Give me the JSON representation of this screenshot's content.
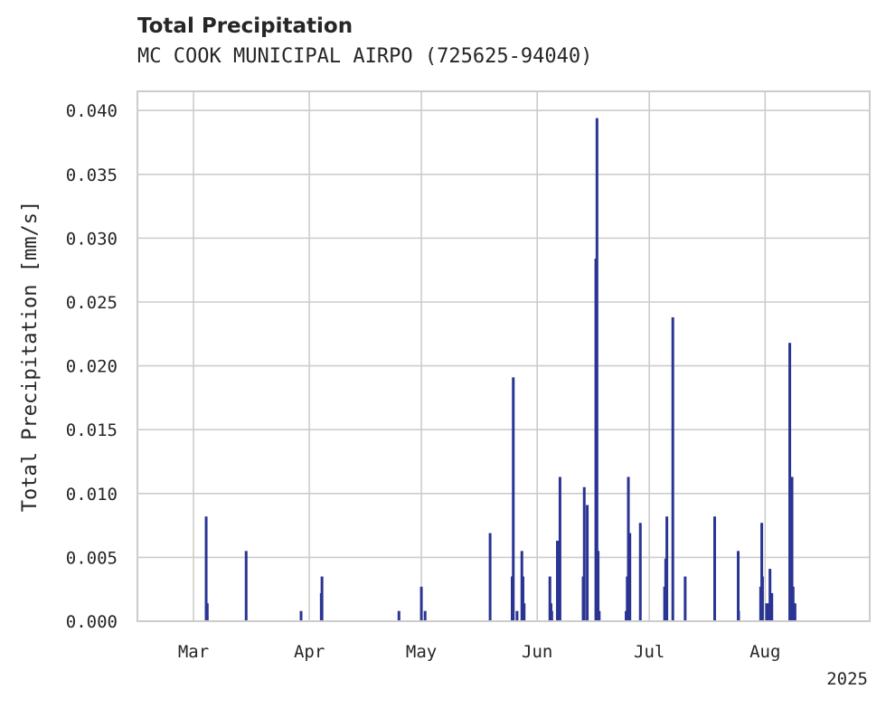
{
  "chart_data": {
    "type": "bar",
    "title": "Total Precipitation",
    "subtitle": "MC COOK MUNICIPAL AIRPO (725625-94040)",
    "ylabel": "Total Precipitation [mm/s]",
    "xlabel": "",
    "year_label": "2025",
    "ylim": [
      0,
      0.0415
    ],
    "xlim_day_of_year": [
      45,
      241
    ],
    "grid": true,
    "bar_color": "#2a3593",
    "yticks": [
      {
        "value": 0.0,
        "label": "0.000"
      },
      {
        "value": 0.005,
        "label": "0.005"
      },
      {
        "value": 0.01,
        "label": "0.010"
      },
      {
        "value": 0.015,
        "label": "0.015"
      },
      {
        "value": 0.02,
        "label": "0.020"
      },
      {
        "value": 0.025,
        "label": "0.025"
      },
      {
        "value": 0.03,
        "label": "0.030"
      },
      {
        "value": 0.035,
        "label": "0.035"
      },
      {
        "value": 0.04,
        "label": "0.040"
      }
    ],
    "xticks": [
      {
        "day_of_year": 60,
        "label": "Mar"
      },
      {
        "day_of_year": 91,
        "label": "Apr"
      },
      {
        "day_of_year": 121,
        "label": "May"
      },
      {
        "day_of_year": 152,
        "label": "Jun"
      },
      {
        "day_of_year": 182,
        "label": "Jul"
      },
      {
        "day_of_year": 213,
        "label": "Aug"
      }
    ],
    "series": [
      {
        "name": "Total Precipitation",
        "day_of_year": [
          63.4,
          63.7,
          74.1,
          88.8,
          94.2,
          94.4,
          115.0,
          121.0,
          122.0,
          139.4,
          145.3,
          145.6,
          146.6,
          147.9,
          148.2,
          148.5,
          155.4,
          155.7,
          155.9,
          157.4,
          157.7,
          158.1,
          164.3,
          164.6,
          165.4,
          167.7,
          168.0,
          168.3,
          168.6,
          175.8,
          176.1,
          176.4,
          176.8,
          179.6,
          186.1,
          186.4,
          186.7,
          188.3,
          191.6,
          199.5,
          205.8,
          205.9,
          211.8,
          212.1,
          212.3,
          213.4,
          213.7,
          213.9,
          214.3,
          214.8,
          219.6,
          220.2,
          220.5,
          220.7,
          221.0
        ],
        "values": [
          0.0082,
          0.0014,
          0.0055,
          0.0008,
          0.0022,
          0.0035,
          0.0008,
          0.0027,
          0.0008,
          0.0069,
          0.0035,
          0.0191,
          0.0008,
          0.0055,
          0.0035,
          0.0014,
          0.0035,
          0.0014,
          0.0008,
          0.0063,
          0.0008,
          0.0113,
          0.0035,
          0.0105,
          0.0091,
          0.0284,
          0.0394,
          0.0055,
          0.0008,
          0.0008,
          0.0035,
          0.0113,
          0.0069,
          0.0077,
          0.0027,
          0.0049,
          0.0082,
          0.0238,
          0.0035,
          0.0082,
          0.0055,
          0.0008,
          0.0027,
          0.0077,
          0.0035,
          0.0014,
          0.0008,
          0.0014,
          0.0041,
          0.0022,
          0.0218,
          0.0113,
          0.0027,
          0.0008,
          0.0014
        ]
      }
    ]
  }
}
